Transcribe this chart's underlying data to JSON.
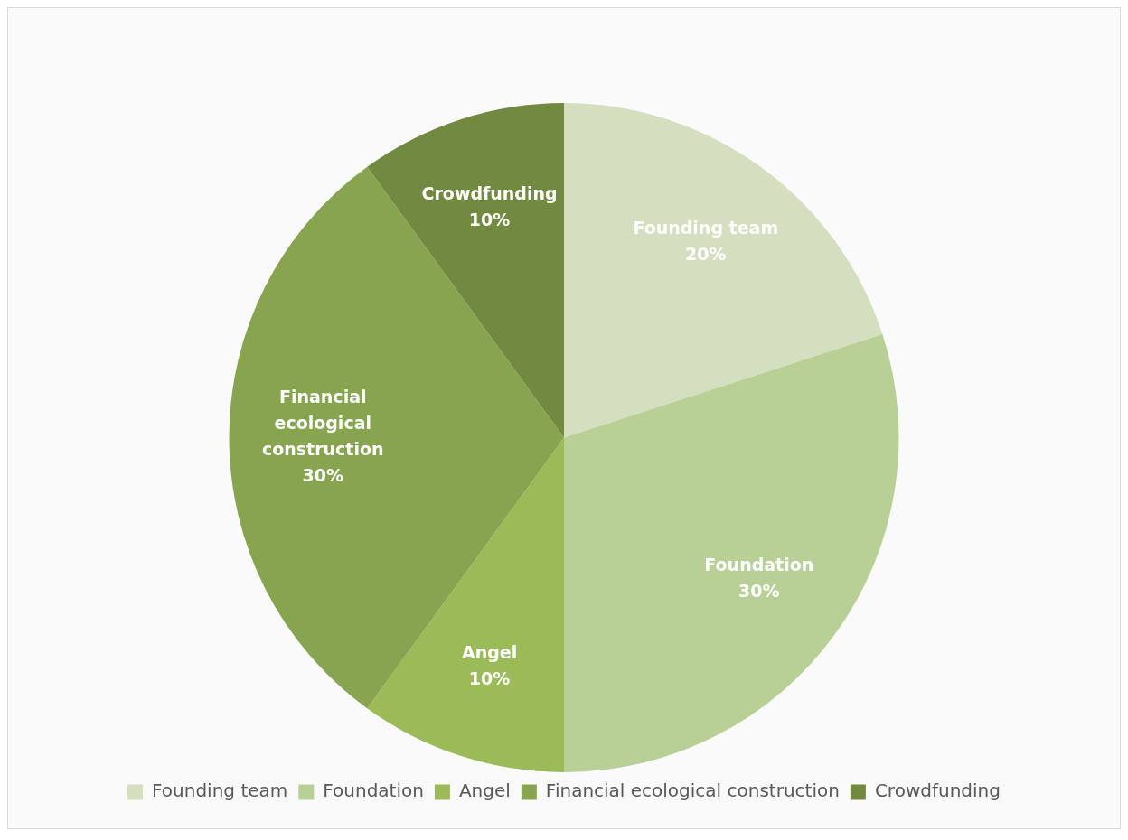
{
  "chart_data": {
    "type": "pie",
    "categories": [
      "Founding team",
      "Foundation",
      "Angel",
      "Financial ecological construction",
      "Crowdfunding"
    ],
    "values": [
      20,
      30,
      10,
      30,
      10
    ],
    "value_labels": [
      "20%",
      "30%",
      "10%",
      "30%",
      "10%"
    ],
    "colors": [
      "#d3dfbf",
      "#b8cf96",
      "#9bbb59",
      "#87a44f",
      "#728a3f"
    ],
    "legend": "bottom"
  }
}
